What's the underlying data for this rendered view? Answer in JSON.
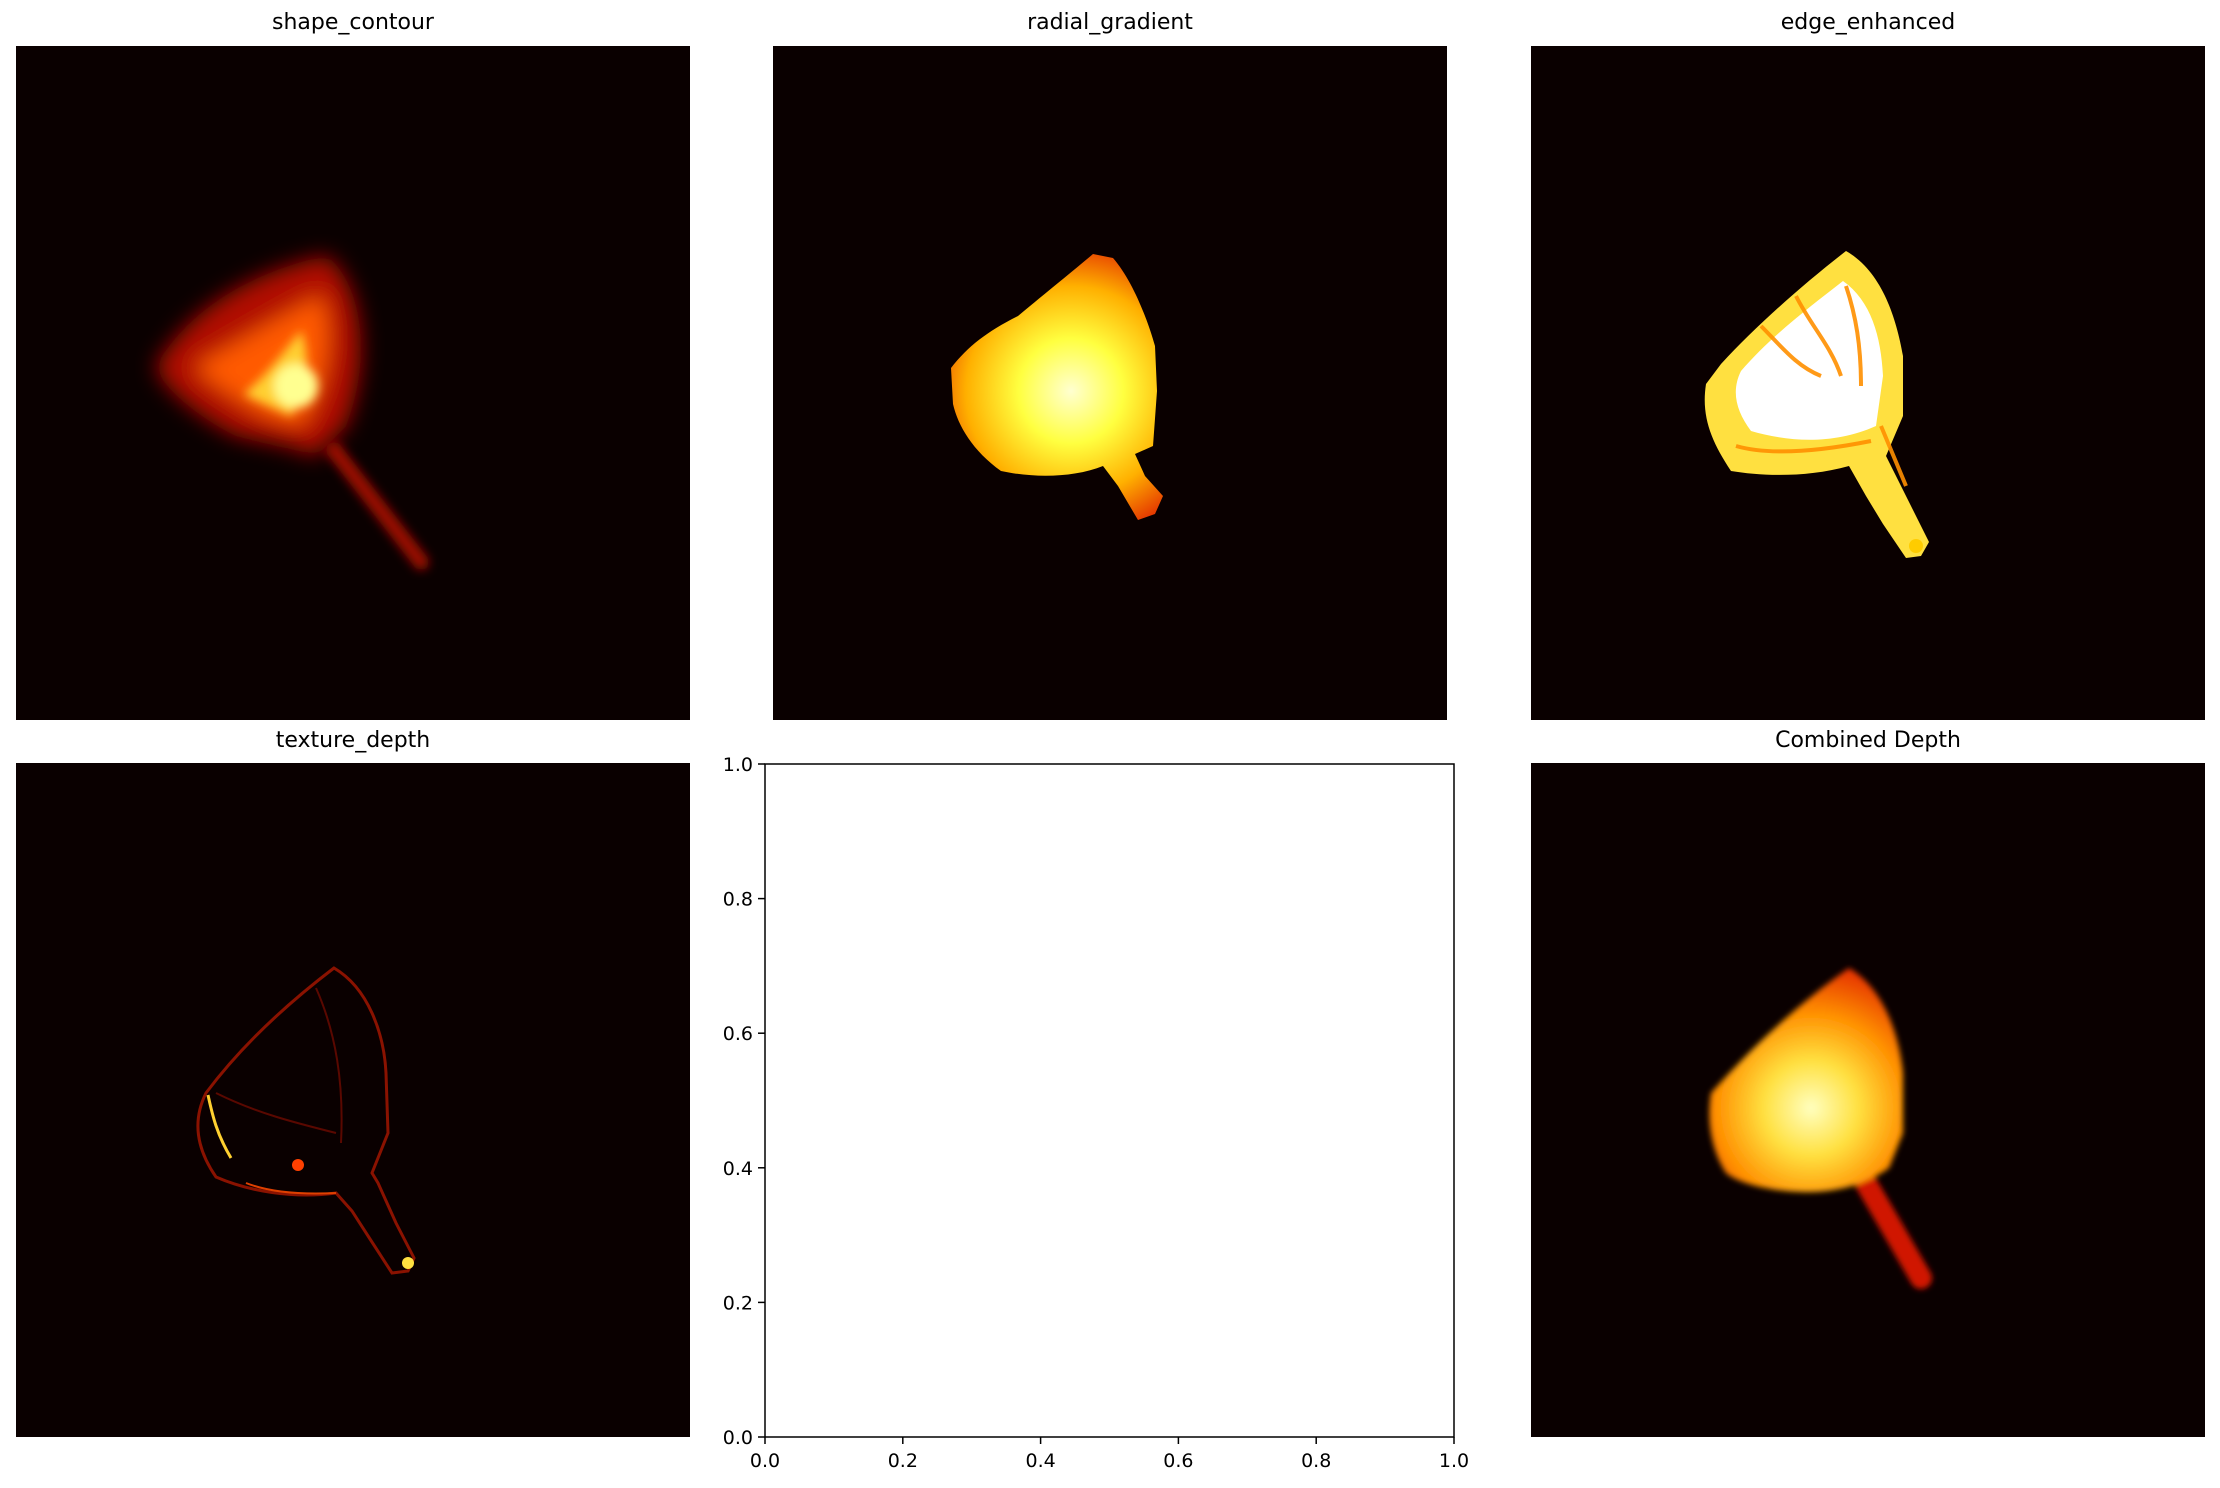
{
  "figure": {
    "panels": [
      {
        "id": "shape_contour",
        "title": "shape_contour"
      },
      {
        "id": "radial_gradient",
        "title": "radial_gradient"
      },
      {
        "id": "edge_enhanced",
        "title": "edge_enhanced"
      },
      {
        "id": "texture_depth",
        "title": "texture_depth"
      },
      {
        "id": "empty_axes",
        "title": ""
      },
      {
        "id": "combined_depth",
        "title": "Combined Depth"
      }
    ]
  },
  "colors": {
    "background": "#0a0000",
    "colormap": "hot",
    "axes_edge": "#000000"
  },
  "chart_data": [
    {
      "type": "heatmap",
      "title": "shape_contour",
      "colormap": "hot",
      "axes_visible": false,
      "content": "blurred leaf-shaped blob with thin stem, brightest near center"
    },
    {
      "type": "heatmap",
      "title": "radial_gradient",
      "colormap": "hot",
      "axes_visible": false,
      "content": "solid shape with radial gradient, brightest at center, fading to red at edges"
    },
    {
      "type": "heatmap",
      "title": "edge_enhanced",
      "colormap": "hot",
      "axes_visible": false,
      "content": "mostly white/yellow shape with orange internal edge lines"
    },
    {
      "type": "heatmap",
      "title": "texture_depth",
      "colormap": "hot",
      "axes_visible": false,
      "content": "thin outline of shape with sparse bright edge pixels"
    },
    {
      "type": "scatter",
      "title": "",
      "series": [],
      "xlim": [
        0,
        1
      ],
      "ylim": [
        0,
        1
      ],
      "xticks": [
        "0.0",
        "0.2",
        "0.4",
        "0.6",
        "0.8",
        "1.0"
      ],
      "yticks": [
        "0.0",
        "0.2",
        "0.4",
        "0.6",
        "0.8",
        "1.0"
      ],
      "grid": false
    },
    {
      "type": "heatmap",
      "title": "Combined Depth",
      "colormap": "hot",
      "axes_visible": false,
      "content": "smoothed shape, bright yellow-white core with red-orange edges and stem"
    }
  ]
}
